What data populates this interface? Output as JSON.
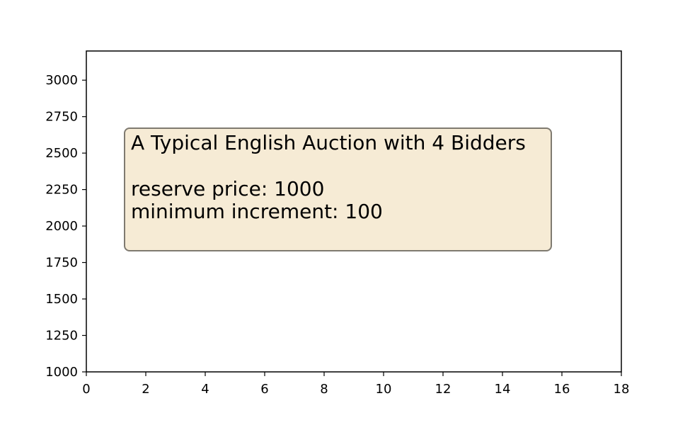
{
  "chart_data": {
    "type": "line",
    "title": "",
    "xlabel": "",
    "ylabel": "",
    "xlim": [
      0,
      18
    ],
    "ylim": [
      1000,
      3200
    ],
    "x_ticks": [
      0,
      2,
      4,
      6,
      8,
      10,
      12,
      14,
      16,
      18
    ],
    "y_ticks": [
      1000,
      1250,
      1500,
      1750,
      2000,
      2250,
      2500,
      2750,
      3000
    ],
    "series": [],
    "grid": false,
    "annotation": {
      "line1": "A Typical English Auction with 4 Bidders",
      "line2": "reserve price: 1000",
      "line3": "minimum increment: 100",
      "background": "#f6ebd5",
      "border": "#7f7a70"
    }
  }
}
